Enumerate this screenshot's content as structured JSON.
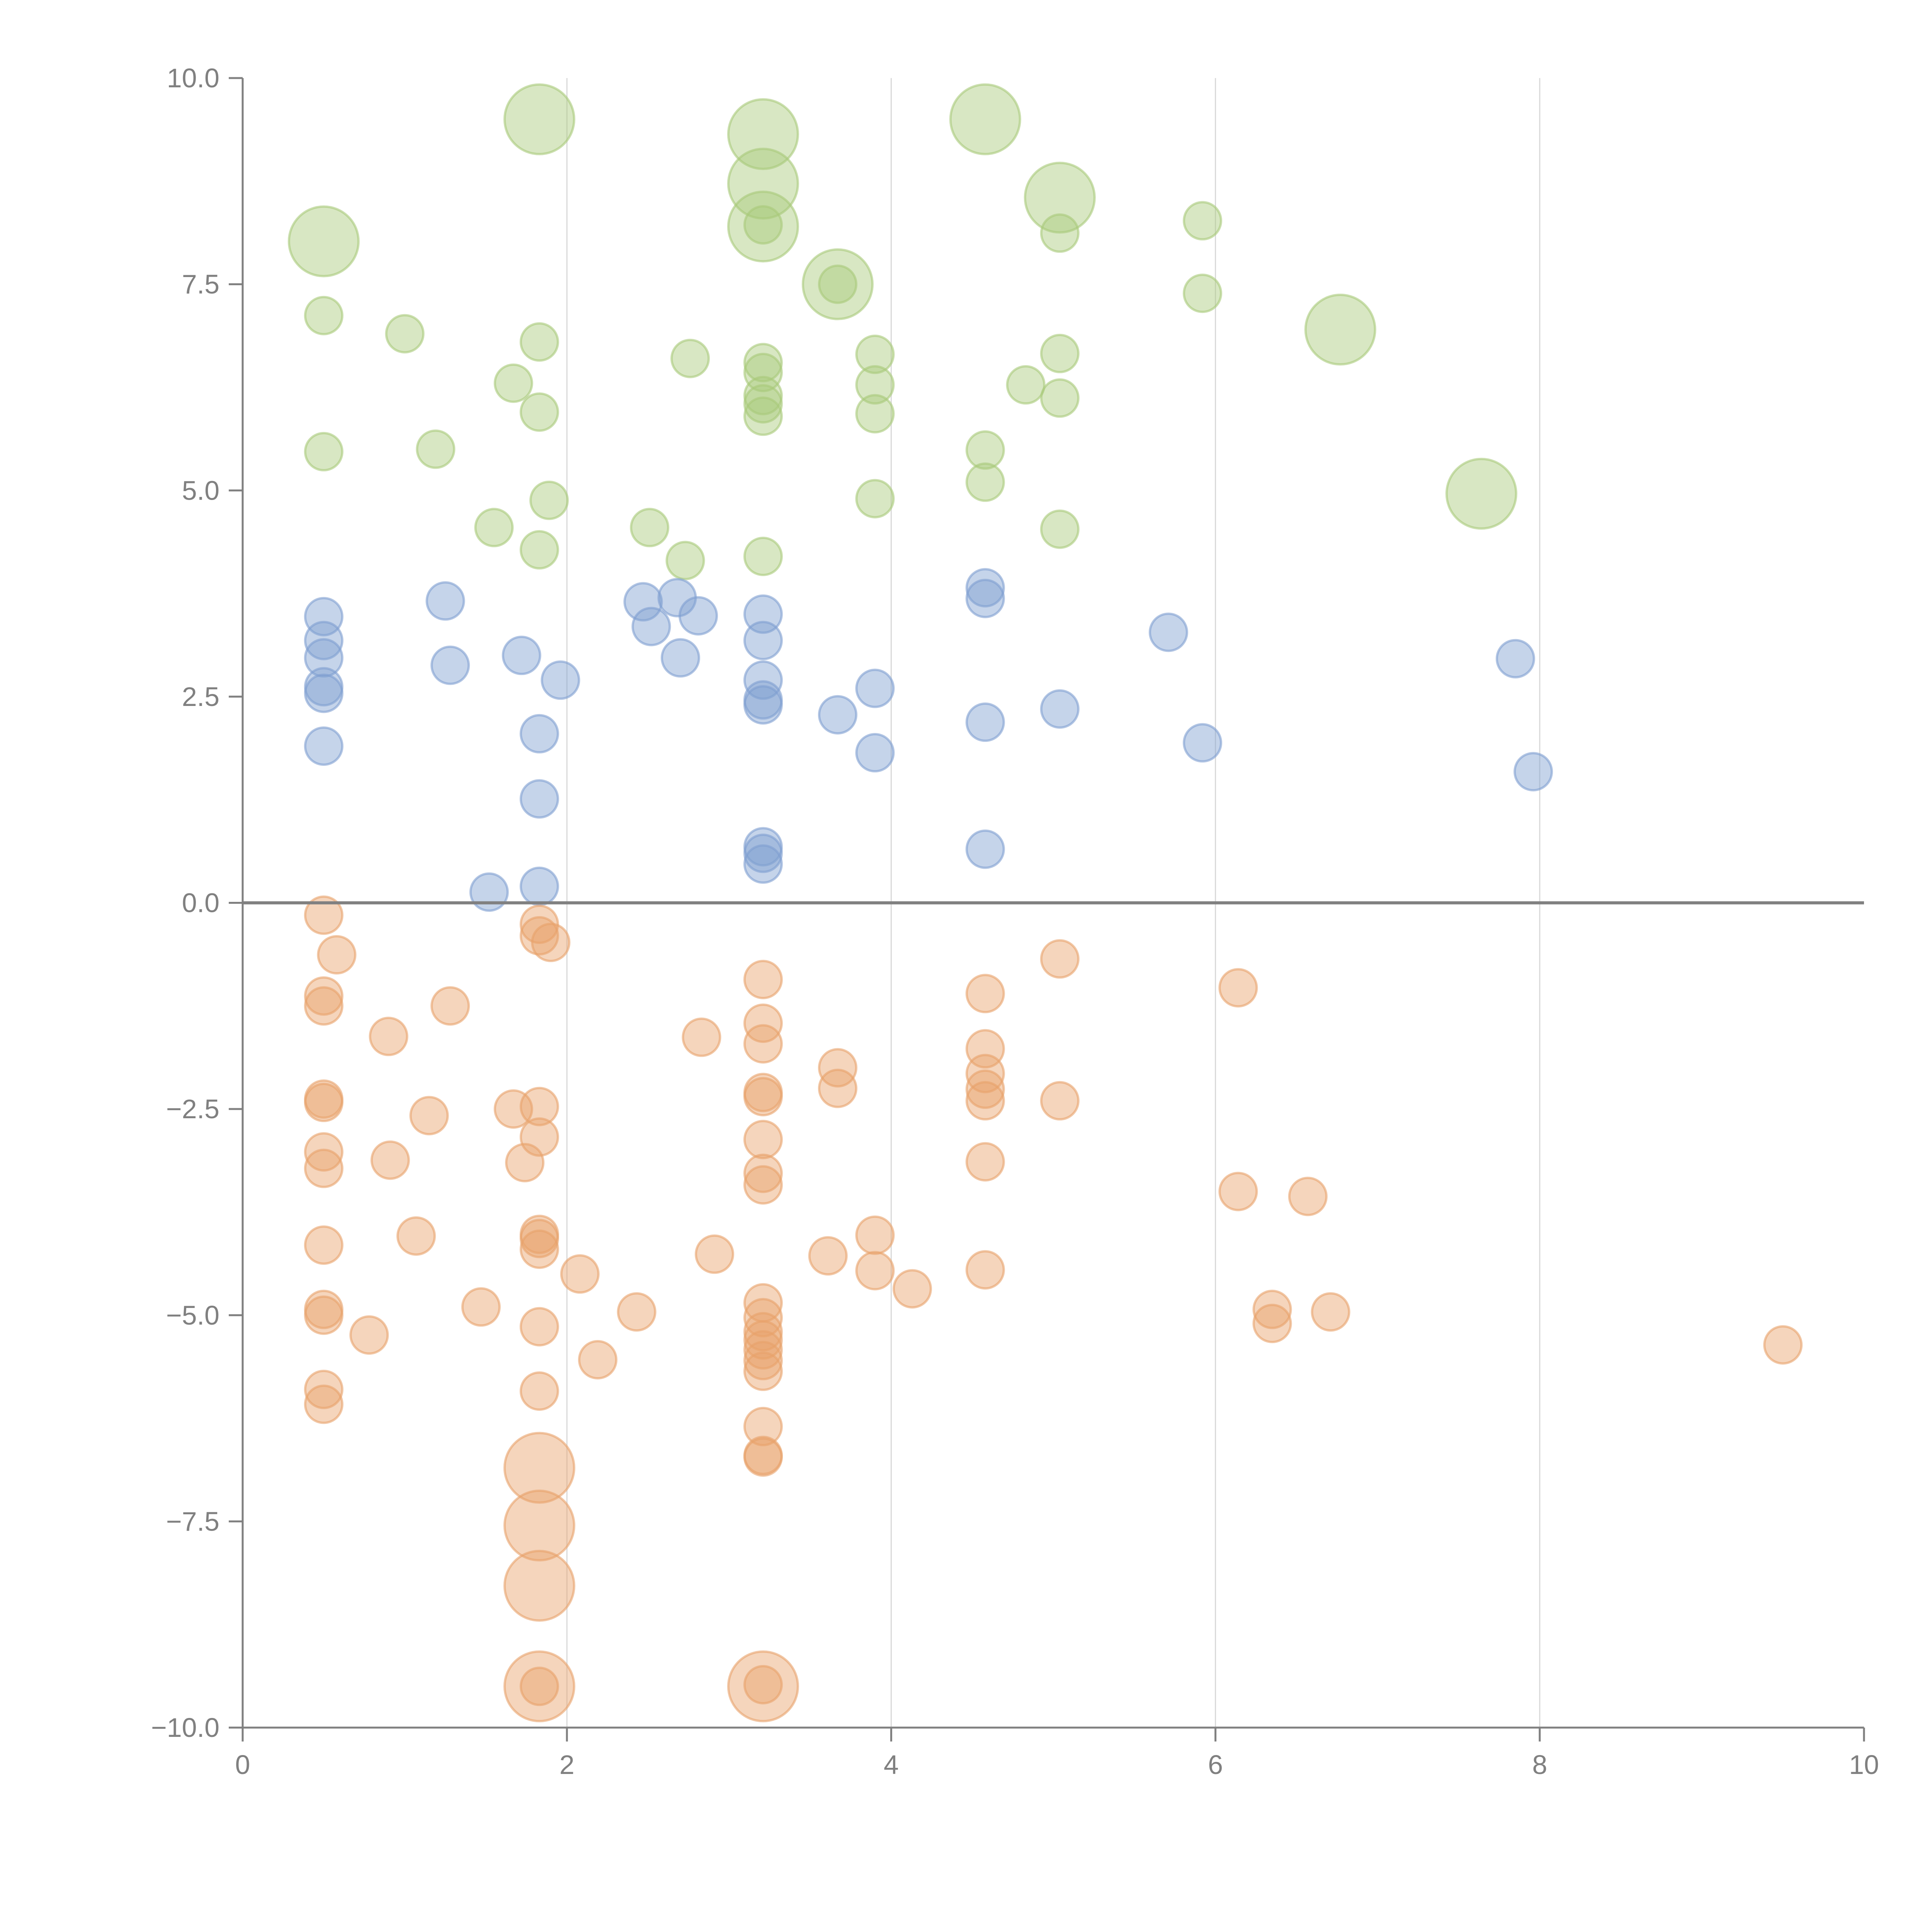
{
  "chart_data": {
    "type": "scatter",
    "title": "",
    "xlabel": "",
    "ylabel": "",
    "xlim": [
      0,
      10
    ],
    "ylim": [
      -10,
      10
    ],
    "grid": "vertical lines at x ticks",
    "zero_line": true,
    "legend": "none",
    "x_ticks": [
      "0",
      "2",
      "4",
      "6",
      "8",
      "10"
    ],
    "x_tick_values": [
      0,
      2,
      4,
      6,
      8,
      10
    ],
    "y_ticks": [
      "10.0",
      "7.5",
      "5.0",
      "2.5",
      "0.0",
      "−2.5",
      "−5.0",
      "−7.5",
      "−10.0"
    ],
    "y_tick_values": [
      10,
      7.5,
      5,
      2.5,
      0,
      -2.5,
      -5,
      -7.5,
      -10
    ],
    "series": [
      {
        "name": "green",
        "color": "#a9c97a",
        "points": [
          [
            1.83,
            9.5,
            "L"
          ],
          [
            3.21,
            9.32,
            "L"
          ],
          [
            3.21,
            8.72,
            "L"
          ],
          [
            3.21,
            8.2,
            "L"
          ],
          [
            4.58,
            9.5,
            "L"
          ],
          [
            5.04,
            8.55,
            "L"
          ],
          [
            0.5,
            8.02,
            "L"
          ],
          [
            3.67,
            7.5,
            "L"
          ],
          [
            6.77,
            6.95,
            "L"
          ],
          [
            7.64,
            4.96,
            "L"
          ],
          [
            3.21,
            8.22,
            "S"
          ],
          [
            3.67,
            7.5,
            "S"
          ],
          [
            5.04,
            8.12,
            "S"
          ],
          [
            5.92,
            8.27,
            "S"
          ],
          [
            5.92,
            7.39,
            "S"
          ],
          [
            0.5,
            7.12,
            "S"
          ],
          [
            1.0,
            6.9,
            "S"
          ],
          [
            1.83,
            6.8,
            "S"
          ],
          [
            2.76,
            6.6,
            "S"
          ],
          [
            1.67,
            6.3,
            "S"
          ],
          [
            1.83,
            5.95,
            "S"
          ],
          [
            3.21,
            6.55,
            "S"
          ],
          [
            3.21,
            6.43,
            "S"
          ],
          [
            3.21,
            6.15,
            "S"
          ],
          [
            3.21,
            6.05,
            "S"
          ],
          [
            3.21,
            5.9,
            "S"
          ],
          [
            3.9,
            6.65,
            "S"
          ],
          [
            3.9,
            6.28,
            "S"
          ],
          [
            3.9,
            5.93,
            "S"
          ],
          [
            4.83,
            6.28,
            "S"
          ],
          [
            5.04,
            6.66,
            "S"
          ],
          [
            5.04,
            6.12,
            "S"
          ],
          [
            0.5,
            5.47,
            "S"
          ],
          [
            1.19,
            5.5,
            "S"
          ],
          [
            4.58,
            5.49,
            "S"
          ],
          [
            4.58,
            5.1,
            "S"
          ],
          [
            1.55,
            4.55,
            "S"
          ],
          [
            1.89,
            4.88,
            "S"
          ],
          [
            1.83,
            4.28,
            "S"
          ],
          [
            2.51,
            4.55,
            "S"
          ],
          [
            2.73,
            4.15,
            "S"
          ],
          [
            3.21,
            4.2,
            "S"
          ],
          [
            3.9,
            4.9,
            "S"
          ],
          [
            5.04,
            4.53,
            "S"
          ]
        ]
      },
      {
        "name": "blue",
        "color": "#7f9fd1",
        "points": [
          [
            0.5,
            3.47
          ],
          [
            0.5,
            3.18
          ],
          [
            0.5,
            2.97
          ],
          [
            0.5,
            2.62
          ],
          [
            0.5,
            2.54
          ],
          [
            0.5,
            1.9
          ],
          [
            1.25,
            3.66
          ],
          [
            1.28,
            2.88
          ],
          [
            1.72,
            3.0
          ],
          [
            1.96,
            2.7
          ],
          [
            1.83,
            2.05
          ],
          [
            1.83,
            1.26
          ],
          [
            1.52,
            0.13
          ],
          [
            1.83,
            0.2
          ],
          [
            2.47,
            3.65
          ],
          [
            2.52,
            3.35
          ],
          [
            2.68,
            3.7
          ],
          [
            2.81,
            3.48
          ],
          [
            2.7,
            2.97
          ],
          [
            3.21,
            3.5
          ],
          [
            3.21,
            3.18
          ],
          [
            3.21,
            2.7
          ],
          [
            3.21,
            2.46
          ],
          [
            3.21,
            2.4
          ],
          [
            3.21,
            0.68
          ],
          [
            3.21,
            0.6
          ],
          [
            3.21,
            0.47
          ],
          [
            3.67,
            2.28
          ],
          [
            3.9,
            2.6
          ],
          [
            3.9,
            1.82
          ],
          [
            4.58,
            3.82
          ],
          [
            4.58,
            3.69
          ],
          [
            4.58,
            2.19
          ],
          [
            4.58,
            0.65
          ],
          [
            5.04,
            2.35
          ],
          [
            5.71,
            3.28
          ],
          [
            5.92,
            1.94
          ],
          [
            7.85,
            2.96
          ],
          [
            7.96,
            1.59
          ]
        ]
      },
      {
        "name": "orange",
        "color": "#e8a16a",
        "points": [
          [
            1.83,
            -6.85,
            "L"
          ],
          [
            1.83,
            -7.55,
            "L"
          ],
          [
            1.83,
            -8.28,
            "L"
          ],
          [
            1.83,
            -9.5,
            "L"
          ],
          [
            3.21,
            -9.5,
            "L"
          ],
          [
            1.83,
            -9.5,
            "S"
          ],
          [
            3.21,
            -9.48,
            "S"
          ],
          [
            0.5,
            -0.15,
            "S"
          ],
          [
            0.58,
            -0.63,
            "S"
          ],
          [
            0.5,
            -1.13,
            "S"
          ],
          [
            0.5,
            -1.25,
            "S"
          ],
          [
            0.5,
            -2.38,
            "S"
          ],
          [
            0.5,
            -2.42,
            "S"
          ],
          [
            0.5,
            -3.02,
            "S"
          ],
          [
            0.5,
            -3.22,
            "S"
          ],
          [
            0.5,
            -4.15,
            "S"
          ],
          [
            0.5,
            -4.93,
            "S"
          ],
          [
            0.5,
            -5.0,
            "S"
          ],
          [
            0.5,
            -5.9,
            "S"
          ],
          [
            0.5,
            -6.08,
            "S"
          ],
          [
            0.9,
            -1.62,
            "S"
          ],
          [
            0.91,
            -3.12,
            "S"
          ],
          [
            0.78,
            -5.24,
            "S"
          ],
          [
            1.07,
            -4.04,
            "S"
          ],
          [
            1.15,
            -2.58,
            "S"
          ],
          [
            1.28,
            -1.25,
            "S"
          ],
          [
            1.47,
            -4.9,
            "S"
          ],
          [
            1.67,
            -2.5,
            "S"
          ],
          [
            1.74,
            -3.15,
            "S"
          ],
          [
            1.83,
            -0.26,
            "S"
          ],
          [
            1.83,
            -0.4,
            "S"
          ],
          [
            1.9,
            -0.48,
            "S"
          ],
          [
            1.83,
            -2.47,
            "S"
          ],
          [
            1.83,
            -2.84,
            "S"
          ],
          [
            1.83,
            -4.02,
            "S"
          ],
          [
            1.83,
            -4.07,
            "S"
          ],
          [
            1.83,
            -4.2,
            "S"
          ],
          [
            1.83,
            -5.14,
            "S"
          ],
          [
            1.83,
            -5.92,
            "S"
          ],
          [
            2.08,
            -4.5,
            "S"
          ],
          [
            2.19,
            -5.54,
            "S"
          ],
          [
            2.43,
            -4.96,
            "S"
          ],
          [
            2.83,
            -1.63,
            "S"
          ],
          [
            2.91,
            -4.26,
            "S"
          ],
          [
            3.21,
            -0.93,
            "S"
          ],
          [
            3.21,
            -1.46,
            "S"
          ],
          [
            3.21,
            -1.71,
            "S"
          ],
          [
            3.21,
            -2.3,
            "S"
          ],
          [
            3.21,
            -2.35,
            "S"
          ],
          [
            3.21,
            -2.87,
            "S"
          ],
          [
            3.21,
            -3.28,
            "S"
          ],
          [
            3.21,
            -3.42,
            "S"
          ],
          [
            3.21,
            -4.85,
            "S"
          ],
          [
            3.21,
            -5.03,
            "S"
          ],
          [
            3.21,
            -5.2,
            "S"
          ],
          [
            3.21,
            -5.3,
            "S"
          ],
          [
            3.21,
            -5.42,
            "S"
          ],
          [
            3.21,
            -5.55,
            "S"
          ],
          [
            3.21,
            -5.68,
            "S"
          ],
          [
            3.21,
            -6.35,
            "S"
          ],
          [
            3.21,
            -6.7,
            "S"
          ],
          [
            3.21,
            -6.72,
            "S"
          ],
          [
            3.61,
            -4.28,
            "S"
          ],
          [
            3.67,
            -2.0,
            "S"
          ],
          [
            3.67,
            -2.25,
            "S"
          ],
          [
            3.9,
            -4.03,
            "S"
          ],
          [
            3.9,
            -4.46,
            "S"
          ],
          [
            4.13,
            -4.68,
            "S"
          ],
          [
            4.58,
            -1.1,
            "S"
          ],
          [
            4.58,
            -1.77,
            "S"
          ],
          [
            4.58,
            -2.07,
            "S"
          ],
          [
            4.58,
            -2.26,
            "S"
          ],
          [
            4.58,
            -2.4,
            "S"
          ],
          [
            4.58,
            -3.14,
            "S"
          ],
          [
            4.58,
            -4.45,
            "S"
          ],
          [
            5.04,
            -0.68,
            "S"
          ],
          [
            5.04,
            -2.4,
            "S"
          ],
          [
            6.14,
            -1.03,
            "S"
          ],
          [
            6.14,
            -3.5,
            "S"
          ],
          [
            6.57,
            -3.56,
            "S"
          ],
          [
            6.35,
            -4.93,
            "S"
          ],
          [
            6.35,
            -5.1,
            "S"
          ],
          [
            6.71,
            -4.96,
            "S"
          ],
          [
            9.5,
            -5.36,
            "S"
          ]
        ]
      }
    ]
  }
}
